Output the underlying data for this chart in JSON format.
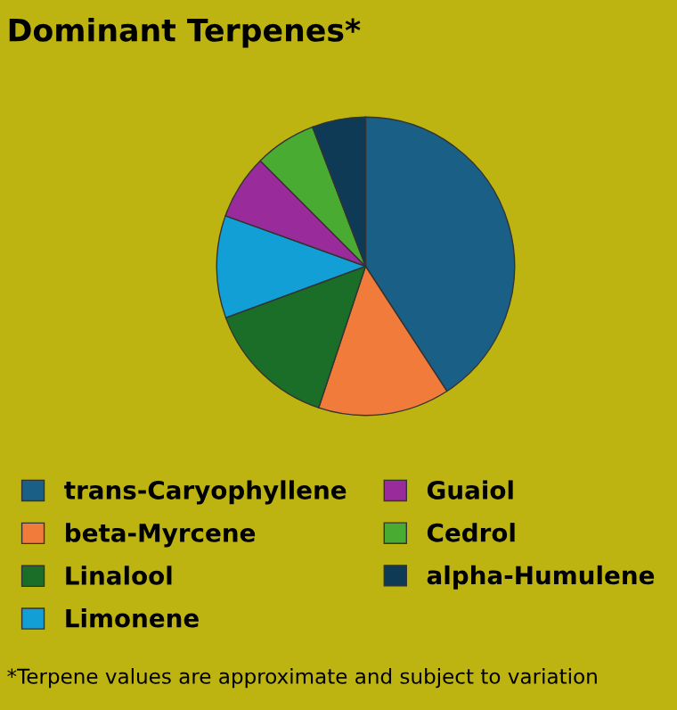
{
  "chart_data": {
    "type": "pie",
    "title": "Dominant Terpenes*",
    "categories": [
      "trans-Caryophyllene",
      "beta-Myrcene",
      "Linalool",
      "Limonene",
      "Guaiol",
      "Cedrol",
      "alpha-Humulene"
    ],
    "values": [
      40.8,
      14.3,
      14.3,
      11.1,
      7.0,
      6.7,
      5.8
    ],
    "colors": [
      "#1a5f86",
      "#f07b3a",
      "#1b6e28",
      "#129fd6",
      "#9a2b9a",
      "#4aab33",
      "#0f3a55"
    ],
    "legend": "bottom",
    "annotations": [
      "*Terpene values are approximate and subject to variation"
    ]
  }
}
